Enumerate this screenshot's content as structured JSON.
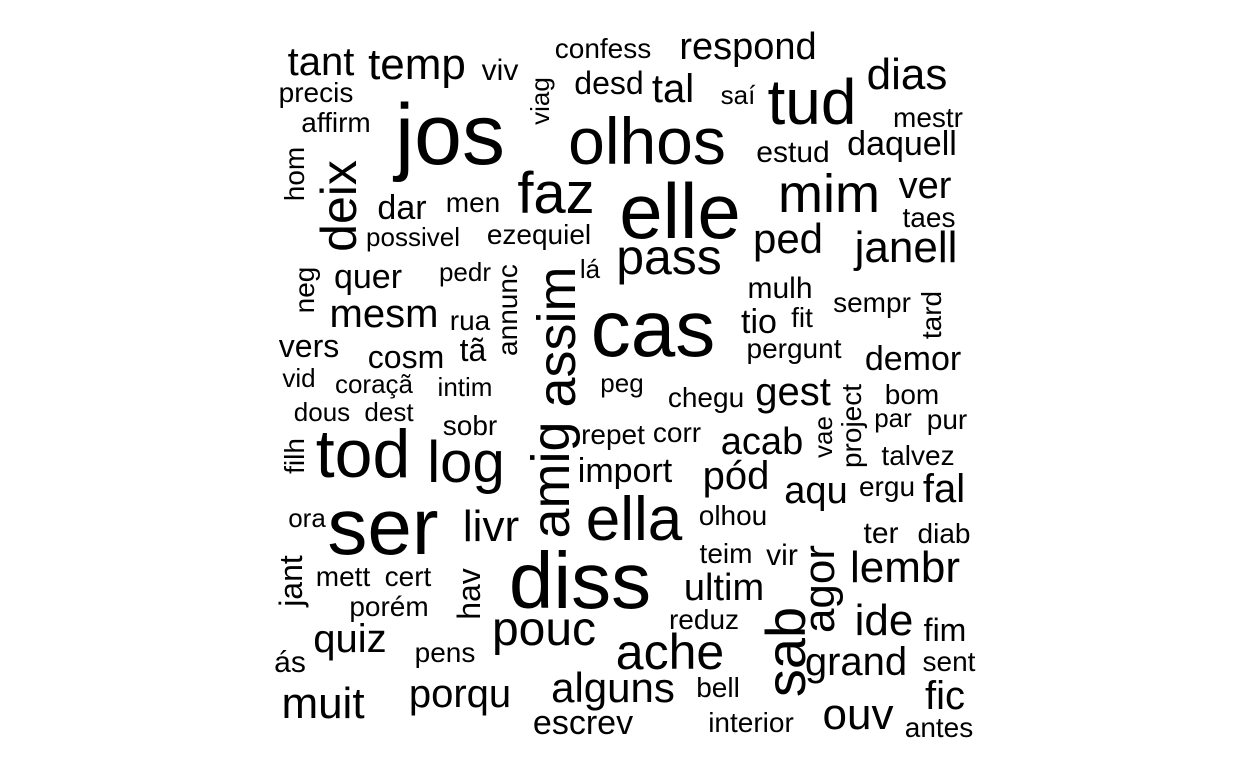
{
  "cloud": {
    "text_color": "#000000",
    "background": "#ffffff",
    "words": [
      {
        "text": "confess"
      },
      {
        "text": "respond"
      },
      {
        "text": "tant"
      },
      {
        "text": "temp"
      },
      {
        "text": "viv"
      },
      {
        "text": "desd"
      },
      {
        "text": "tal"
      },
      {
        "text": "dias"
      },
      {
        "text": "precis"
      },
      {
        "text": "saí"
      },
      {
        "text": "tud"
      },
      {
        "text": "mestr"
      },
      {
        "text": "affirm"
      },
      {
        "text": "jos"
      },
      {
        "text": "olhos"
      },
      {
        "text": "daquell"
      },
      {
        "text": "estud"
      },
      {
        "text": "mim"
      },
      {
        "text": "ver"
      },
      {
        "text": "faz"
      },
      {
        "text": "elle"
      },
      {
        "text": "dar"
      },
      {
        "text": "men"
      },
      {
        "text": "taes"
      },
      {
        "text": "possivel"
      },
      {
        "text": "ezequiel"
      },
      {
        "text": "ped"
      },
      {
        "text": "janell"
      },
      {
        "text": "pass"
      },
      {
        "text": "quer"
      },
      {
        "text": "pedr"
      },
      {
        "text": "lá"
      },
      {
        "text": "mulh"
      },
      {
        "text": "sempr"
      },
      {
        "text": "mesm"
      },
      {
        "text": "cas"
      },
      {
        "text": "rua"
      },
      {
        "text": "tio"
      },
      {
        "text": "fit"
      },
      {
        "text": "vers"
      },
      {
        "text": "cosm"
      },
      {
        "text": "tã"
      },
      {
        "text": "pergunt"
      },
      {
        "text": "demor"
      },
      {
        "text": "vid"
      },
      {
        "text": "coraçã"
      },
      {
        "text": "intim"
      },
      {
        "text": "peg"
      },
      {
        "text": "chegu"
      },
      {
        "text": "gest"
      },
      {
        "text": "bom"
      },
      {
        "text": "dous"
      },
      {
        "text": "dest"
      },
      {
        "text": "par"
      },
      {
        "text": "pur"
      },
      {
        "text": "sobr"
      },
      {
        "text": "repet"
      },
      {
        "text": "corr"
      },
      {
        "text": "tod"
      },
      {
        "text": "log"
      },
      {
        "text": "acab"
      },
      {
        "text": "talvez"
      },
      {
        "text": "import"
      },
      {
        "text": "pód"
      },
      {
        "text": "aqu"
      },
      {
        "text": "ergu"
      },
      {
        "text": "fal"
      },
      {
        "text": "ser"
      },
      {
        "text": "ora"
      },
      {
        "text": "livr"
      },
      {
        "text": "ella"
      },
      {
        "text": "olhou"
      },
      {
        "text": "ter"
      },
      {
        "text": "diab"
      },
      {
        "text": "diss"
      },
      {
        "text": "teim"
      },
      {
        "text": "vir"
      },
      {
        "text": "lembr"
      },
      {
        "text": "mett"
      },
      {
        "text": "cert"
      },
      {
        "text": "ultim"
      },
      {
        "text": "porém"
      },
      {
        "text": "reduz"
      },
      {
        "text": "ide"
      },
      {
        "text": "pouc"
      },
      {
        "text": "fim"
      },
      {
        "text": "quiz"
      },
      {
        "text": "ache"
      },
      {
        "text": "ás"
      },
      {
        "text": "pens"
      },
      {
        "text": "grand"
      },
      {
        "text": "sent"
      },
      {
        "text": "alguns"
      },
      {
        "text": "muit"
      },
      {
        "text": "porqu"
      },
      {
        "text": "bell"
      },
      {
        "text": "fic"
      },
      {
        "text": "ouv"
      },
      {
        "text": "escrev"
      },
      {
        "text": "interior"
      },
      {
        "text": "antes"
      },
      {
        "text": "viag"
      },
      {
        "text": "hom"
      },
      {
        "text": "deix"
      },
      {
        "text": "neg"
      },
      {
        "text": "annunc"
      },
      {
        "text": "assim"
      },
      {
        "text": "amig"
      },
      {
        "text": "tard"
      },
      {
        "text": "project"
      },
      {
        "text": "vae"
      },
      {
        "text": "filh"
      },
      {
        "text": "jant"
      },
      {
        "text": "hav"
      },
      {
        "text": "sab"
      },
      {
        "text": "agor"
      }
    ]
  }
}
